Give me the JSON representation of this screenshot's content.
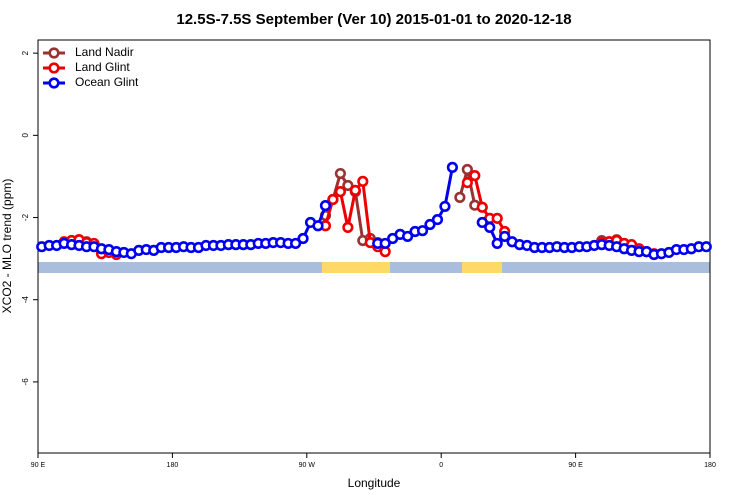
{
  "chart_data": {
    "type": "line",
    "title": "12.5S-7.5S September (Ver 10)   2015-01-01 to 2020-12-18",
    "x_label": "Longitude",
    "y_label": "XCO2 - MLO trend (ppm)",
    "x": [
      92.5,
      97.5,
      102.5,
      107.5,
      112.5,
      117.5,
      122.5,
      127.5,
      132.5,
      137.5,
      142.5,
      147.5,
      152.5,
      157.5,
      162.5,
      167.5,
      172.5,
      177.5,
      182.5,
      187.5,
      192.5,
      197.5,
      202.5,
      207.5,
      212.5,
      217.5,
      222.5,
      227.5,
      232.5,
      237.5,
      242.5,
      247.5,
      252.5,
      257.5,
      262.5,
      267.5,
      272.5,
      277.5,
      282.5,
      287.5,
      292.5,
      297.5,
      302.5,
      307.5,
      312.5,
      317.5,
      322.5,
      327.5,
      332.5,
      337.5,
      342.5,
      347.5,
      352.5,
      357.5,
      362.5,
      367.5,
      372.5,
      377.5,
      382.5,
      387.5,
      392.5,
      397.5,
      402.5,
      407.5,
      412.5,
      417.5,
      422.5,
      427.5,
      432.5,
      437.5,
      442.5,
      447.5,
      452.5,
      457.5,
      462.5,
      467.5,
      472.5,
      477.5,
      482.5,
      487.5,
      492.5,
      497.5,
      502.5,
      507.5,
      512.5,
      517.5,
      522.5,
      527.5,
      532.5,
      537.5
    ],
    "xlim": [
      90,
      540
    ],
    "xticks": [
      {
        "value": 90,
        "label": "90 E"
      },
      180,
      {
        "value": 270,
        "label": "90 W"
      },
      {
        "value": 360,
        "label": "0"
      },
      {
        "value": 450,
        "label": "90 E"
      },
      {
        "value": 540,
        "label": "180"
      }
    ],
    "ylim": [
      -7.73,
      2.32
    ],
    "yticks": [
      2,
      0,
      -2,
      -4,
      -6
    ],
    "legend": "topleft",
    "series": [
      {
        "name": "Land Nadir",
        "color": "#993333",
        "values": [
          null,
          null,
          null,
          null,
          -2.56,
          -2.54,
          -2.59,
          null,
          null,
          null,
          null,
          null,
          null,
          null,
          null,
          null,
          null,
          null,
          null,
          null,
          null,
          null,
          null,
          null,
          null,
          null,
          null,
          null,
          null,
          null,
          null,
          null,
          null,
          null,
          null,
          null,
          null,
          null,
          -1.95,
          -1.56,
          -0.93,
          -1.22,
          -1.37,
          -2.56,
          -2.51,
          -2.61,
          null,
          null,
          null,
          null,
          null,
          null,
          null,
          null,
          null,
          null,
          -1.51,
          -0.83,
          -1.7,
          null,
          null,
          null,
          null,
          null,
          null,
          null,
          null,
          null,
          null,
          null,
          null,
          null,
          null,
          null,
          null,
          -2.56,
          -2.59,
          -2.54,
          -2.63,
          null,
          null,
          null,
          null,
          null,
          null,
          null,
          null,
          null,
          null,
          null
        ]
      },
      {
        "name": "Land Glint",
        "color": "#ee0000",
        "values": [
          null,
          null,
          null,
          -2.59,
          -2.56,
          -2.54,
          -2.61,
          -2.63,
          -2.88,
          -2.85,
          -2.9,
          null,
          null,
          null,
          null,
          null,
          null,
          null,
          null,
          null,
          null,
          null,
          null,
          null,
          null,
          null,
          null,
          null,
          null,
          null,
          null,
          null,
          null,
          null,
          null,
          null,
          null,
          null,
          -2.2,
          -1.56,
          -1.37,
          -2.24,
          -1.34,
          -1.12,
          -2.61,
          -2.71,
          -2.83,
          null,
          null,
          null,
          null,
          null,
          null,
          null,
          null,
          null,
          null,
          -1.15,
          -0.98,
          -1.75,
          -2.02,
          -2.02,
          -2.34,
          null,
          null,
          null,
          null,
          null,
          null,
          null,
          null,
          null,
          null,
          null,
          null,
          -2.61,
          -2.59,
          -2.56,
          -2.63,
          -2.66,
          -2.76,
          -2.83,
          -2.88,
          null,
          null,
          null,
          null,
          null,
          null,
          null
        ]
      },
      {
        "name": "Ocean Glint",
        "color": "#0000ee",
        "values": [
          -2.71,
          -2.68,
          -2.68,
          -2.63,
          -2.66,
          -2.68,
          -2.71,
          -2.71,
          -2.76,
          -2.78,
          -2.83,
          -2.85,
          -2.88,
          -2.8,
          -2.78,
          -2.8,
          -2.73,
          -2.73,
          -2.73,
          -2.71,
          -2.73,
          -2.73,
          -2.68,
          -2.68,
          -2.68,
          -2.66,
          -2.66,
          -2.66,
          -2.66,
          -2.63,
          -2.63,
          -2.61,
          -2.61,
          -2.63,
          -2.63,
          -2.51,
          -2.12,
          -2.2,
          -1.71,
          null,
          null,
          null,
          null,
          null,
          null,
          -2.63,
          -2.63,
          -2.51,
          -2.41,
          -2.46,
          -2.34,
          -2.32,
          -2.17,
          -2.05,
          -1.73,
          -0.78,
          null,
          null,
          null,
          -2.12,
          -2.24,
          -2.63,
          -2.46,
          -2.59,
          -2.66,
          -2.68,
          -2.73,
          -2.73,
          -2.73,
          -2.71,
          -2.73,
          -2.73,
          -2.71,
          -2.71,
          -2.68,
          -2.66,
          -2.68,
          -2.71,
          -2.76,
          -2.8,
          -2.83,
          -2.83,
          -2.9,
          -2.88,
          -2.85,
          -2.78,
          -2.78,
          -2.76,
          -2.71,
          -2.71
        ]
      }
    ]
  }
}
